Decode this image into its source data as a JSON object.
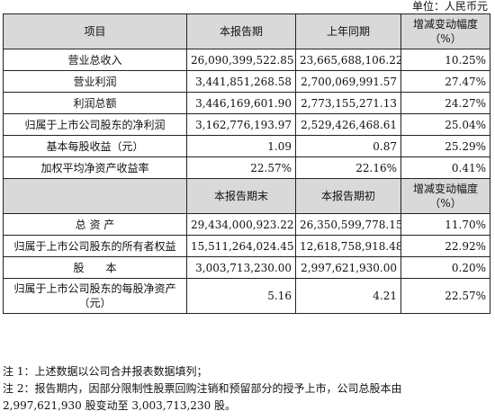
{
  "unit_label": "单位：人民币元",
  "table1": {
    "headers": [
      "项目",
      "本报告期",
      "上年同期",
      "增减变动幅度（%）"
    ],
    "rows": [
      [
        "营业总收入",
        "26,090,399,522.85",
        "23,665,688,106.22",
        "10.25%"
      ],
      [
        "营业利润",
        "3,441,851,268.58",
        "2,700,069,991.57",
        "27.47%"
      ],
      [
        "利润总额",
        "3,446,169,601.90",
        "2,773,155,271.13",
        "24.27%"
      ],
      [
        "归属于上市公司股东的净利润",
        "3,162,776,193.97",
        "2,529,426,468.61",
        "25.04%"
      ],
      [
        "基本每股收益（元）",
        "1.09",
        "0.87",
        "25.29%"
      ],
      [
        "加权平均净资产收益率",
        "22.57%",
        "22.16%",
        "0.41%"
      ]
    ]
  },
  "table2": {
    "headers": [
      "",
      "本报告期末",
      "本报告期初",
      "增减变动幅度（%）"
    ],
    "rows": [
      [
        "总 资 产",
        "29,434,000,923.22",
        "26,350,599,778.15",
        "11.70%"
      ],
      [
        "归属于上市公司股东的所有者权益",
        "15,511,264,024.45",
        "12,618,758,918.48",
        "22.92%"
      ],
      [
        "股　　本",
        "3,003,713,230.00",
        "2,997,621,930.00",
        "0.20%"
      ],
      [
        "归属于上市公司股东的每股净资产（元）",
        "5.16",
        "4.21",
        "22.57%"
      ]
    ]
  },
  "notes": [
    "注 1：上述数据以公司合并报表数据填列；",
    "注 2：报告期内，因部分限制性股票回购注销和预留部分的授予上市，公司总股本由",
    "2,997,621,930 股变动至 3,003,713,230 股。"
  ]
}
